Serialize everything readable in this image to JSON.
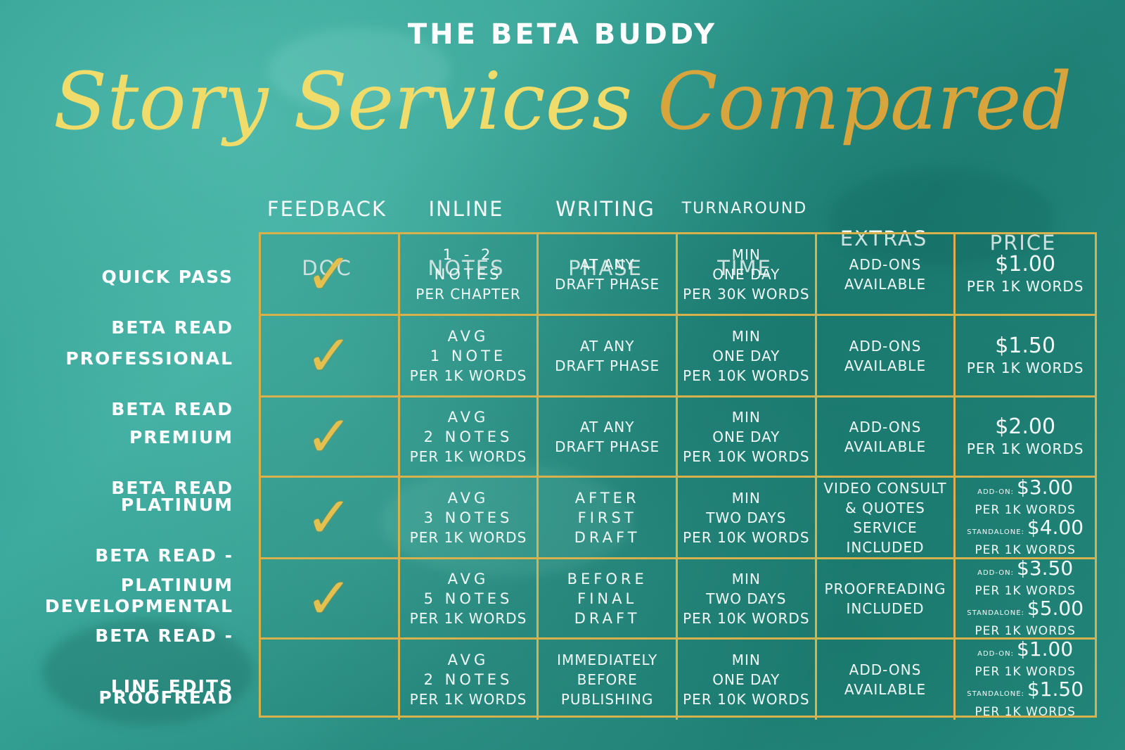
{
  "brand": "THE BETA BUDDY",
  "title": {
    "part1": "Story Services",
    "part2": "Compared"
  },
  "colors": {
    "gold": "#d6b14c",
    "title_light": "#f0dc6a",
    "title_dark": "#d8a43c",
    "teal": "#2f9d91"
  },
  "columns": [
    {
      "line1": "FEEDBACK",
      "line2": "DOC"
    },
    {
      "line1": "INLINE",
      "line2": "NOTES"
    },
    {
      "line1": "WRITING",
      "line2": "PHASE"
    },
    {
      "line1": "TURNAROUND",
      "line2": "TIME"
    },
    {
      "line1": "",
      "line2": "EXTRAS"
    },
    {
      "line1": "",
      "line2": "PRICE"
    }
  ],
  "rows": [
    {
      "label": [
        "QUICK PASS",
        "BETA READ"
      ],
      "feedback_doc": true,
      "notes": [
        "1 - 2",
        "NOTES",
        "PER CHAPTER"
      ],
      "phase": [
        "AT ANY",
        "DRAFT PHASE"
      ],
      "time": [
        "MIN",
        "ONE DAY",
        "PER 30K WORDS"
      ],
      "extras": [
        "ADD-ONS",
        "AVAILABLE"
      ],
      "price": {
        "amount": "$1.00",
        "unit": "PER 1K WORDS"
      }
    },
    {
      "label": [
        "PROFESSIONAL",
        "BETA READ"
      ],
      "feedback_doc": true,
      "notes": [
        "AVG",
        "1 NOTE",
        "PER 1K WORDS"
      ],
      "phase": [
        "AT ANY",
        "DRAFT PHASE"
      ],
      "time": [
        "MIN",
        "ONE DAY",
        "PER 10K WORDS"
      ],
      "extras": [
        "ADD-ONS",
        "AVAILABLE"
      ],
      "price": {
        "amount": "$1.50",
        "unit": "PER 1K WORDS"
      }
    },
    {
      "label": [
        "PREMIUM",
        "BETA READ"
      ],
      "feedback_doc": true,
      "notes": [
        "AVG",
        "2 NOTES",
        "PER 1K WORDS"
      ],
      "phase": [
        "AT ANY",
        "DRAFT PHASE"
      ],
      "time": [
        "MIN",
        "ONE DAY",
        "PER 10K WORDS"
      ],
      "extras": [
        "ADD-ONS",
        "AVAILABLE"
      ],
      "price": {
        "amount": "$2.00",
        "unit": "PER 1K WORDS"
      }
    },
    {
      "label": [
        "PLATINUM",
        "BETA READ -",
        "DEVELOPMENTAL"
      ],
      "feedback_doc": true,
      "notes": [
        "AVG",
        "3 NOTES",
        "PER 1K WORDS"
      ],
      "phase": [
        "AFTER",
        "FIRST",
        "DRAFT"
      ],
      "time": [
        "MIN",
        "TWO DAYS",
        "PER 10K WORDS"
      ],
      "extras": [
        "VIDEO CONSULT",
        "& QUOTES",
        "SERVICE",
        "INCLUDED"
      ],
      "price": {
        "addon_tag": "ADD-ON:",
        "addon_amount": "$3.00",
        "addon_unit": "PER 1K WORDS",
        "standalone_tag": "STANDALONE:",
        "standalone_amount": "$4.00",
        "standalone_unit": "PER 1K WORDS"
      }
    },
    {
      "label": [
        "PLATINUM",
        "BETA READ -",
        "LINE EDITS"
      ],
      "feedback_doc": true,
      "notes": [
        "AVG",
        "5 NOTES",
        "PER 1K WORDS"
      ],
      "phase": [
        "BEFORE",
        "FINAL",
        "DRAFT"
      ],
      "time": [
        "MIN",
        "TWO DAYS",
        "PER 10K WORDS"
      ],
      "extras": [
        "PROOFREADING",
        "INCLUDED"
      ],
      "price": {
        "addon_tag": "ADD-ON:",
        "addon_amount": "$3.50",
        "addon_unit": "PER 1K WORDS",
        "standalone_tag": "STANDALONE:",
        "standalone_amount": "$5.00",
        "standalone_unit": "PER 1K WORDS"
      }
    },
    {
      "label": [
        "PROOFREAD"
      ],
      "feedback_doc": false,
      "notes": [
        "AVG",
        "2 NOTES",
        "PER 1K WORDS"
      ],
      "phase": [
        "IMMEDIATELY",
        "BEFORE",
        "PUBLISHING"
      ],
      "time": [
        "MIN",
        "ONE DAY",
        "PER 10K WORDS"
      ],
      "extras": [
        "ADD-ONS",
        "AVAILABLE"
      ],
      "price": {
        "addon_tag": "ADD-ON:",
        "addon_amount": "$1.00",
        "addon_unit": "PER 1K WORDS",
        "standalone_tag": "STANDALONE:",
        "standalone_amount": "$1.50",
        "standalone_unit": "PER 1K WORDS"
      }
    }
  ],
  "check_glyph": "✓"
}
